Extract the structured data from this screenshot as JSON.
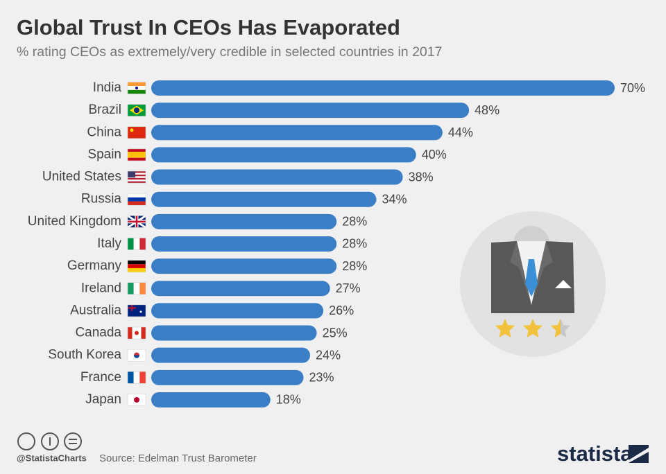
{
  "chart_data": {
    "type": "bar",
    "orientation": "horizontal",
    "title": "Global Trust In CEOs Has Evaporated",
    "subtitle": "% rating CEOs as extremely/very credible in selected countries in 2017",
    "categories": [
      "India",
      "Brazil",
      "China",
      "Spain",
      "United States",
      "Russia",
      "United Kingdom",
      "Italy",
      "Germany",
      "Ireland",
      "Australia",
      "Canada",
      "South Korea",
      "France",
      "Japan"
    ],
    "values": [
      70,
      48,
      44,
      40,
      38,
      34,
      28,
      28,
      28,
      27,
      26,
      25,
      24,
      23,
      18
    ],
    "value_labels": [
      "70%",
      "48%",
      "44%",
      "40%",
      "38%",
      "34%",
      "28%",
      "28%",
      "28%",
      "27%",
      "26%",
      "25%",
      "24%",
      "23%",
      "18%"
    ],
    "color": "#3a7ec6",
    "credit": "@StatistaCharts",
    "source": "Source: Edelman Trust Barometer",
    "brand": "statista"
  }
}
